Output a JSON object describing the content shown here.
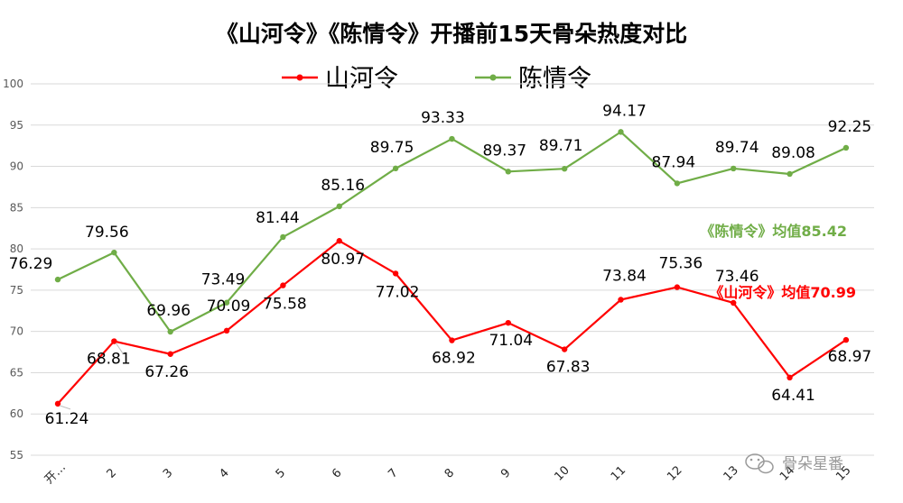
{
  "chart_data": {
    "type": "line",
    "title": "《山河令》《陈情令》开播前15天骨朵热度对比",
    "categories": [
      "开…",
      "2",
      "3",
      "4",
      "5",
      "6",
      "7",
      "8",
      "9",
      "10",
      "11",
      "12",
      "13",
      "14",
      "15"
    ],
    "ylim": [
      55,
      100
    ],
    "yticks": [
      55,
      60,
      65,
      70,
      75,
      80,
      85,
      90,
      95,
      100
    ],
    "grid": true,
    "legend_position": "top-center",
    "series": [
      {
        "name": "山河令",
        "color": "#ff0000",
        "values": [
          61.24,
          68.81,
          67.26,
          70.09,
          75.58,
          80.97,
          77.02,
          68.92,
          71.04,
          67.83,
          73.84,
          75.36,
          73.46,
          64.41,
          68.97
        ],
        "labels": [
          "61.24",
          "68.81",
          "67.26",
          "70.09",
          "75.58",
          "80.97",
          "77.02",
          "68.92",
          "71.04",
          "67.83",
          "73.84",
          "75.36",
          "73.46",
          "64.41",
          "68.97"
        ]
      },
      {
        "name": "陈情令",
        "color": "#70ad47",
        "values": [
          76.29,
          79.56,
          69.96,
          73.49,
          81.44,
          85.16,
          89.75,
          93.33,
          89.37,
          89.71,
          94.17,
          87.94,
          89.74,
          89.08,
          92.25
        ],
        "labels": [
          "76.29",
          "79.56",
          "69.96",
          "73.49",
          "81.44",
          "85.16",
          "89.75",
          "93.33",
          "89.37",
          "89.71",
          "94.17",
          "87.94",
          "89.74",
          "89.08",
          "92.25"
        ]
      }
    ],
    "annotations": [
      {
        "text": "《陈情令》均值85.42",
        "color": "#70ad47"
      },
      {
        "text": "《山河令》均值70.99",
        "color": "#ff0000"
      }
    ]
  },
  "watermark": {
    "text": "骨朵星番",
    "icon": "wechat-icon"
  }
}
